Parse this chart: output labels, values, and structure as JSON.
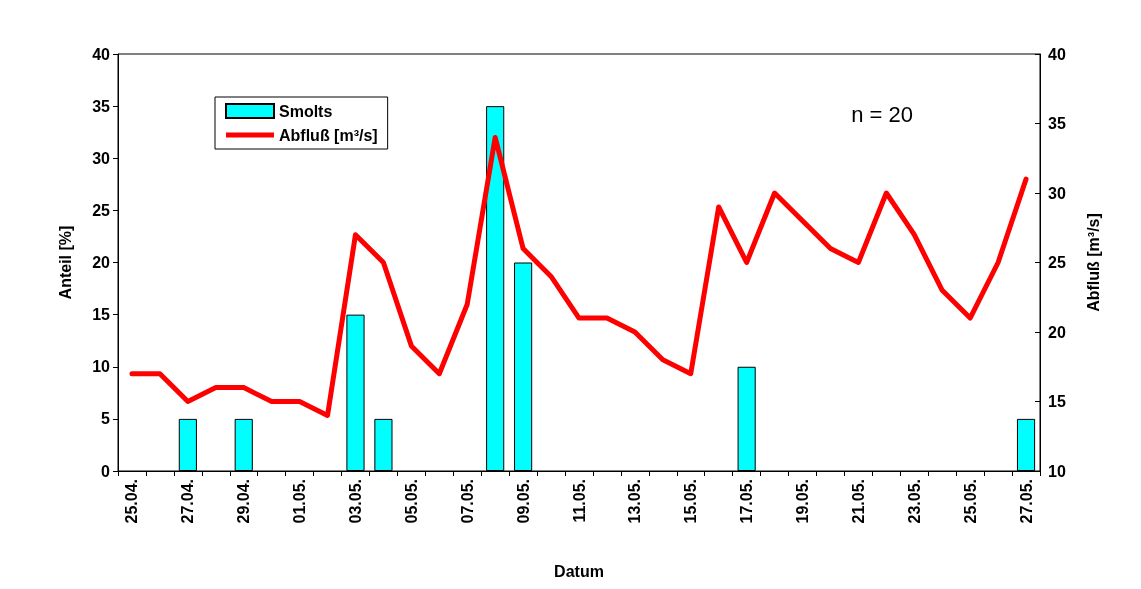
{
  "chart_data": {
    "type": "bar",
    "xlabel": "Datum",
    "ylabel": "Anteil [%]",
    "y2label": "Abfluß [m³/s]",
    "categories": [
      "25.04.",
      null,
      "27.04.",
      null,
      "29.04.",
      null,
      "01.05.",
      null,
      "03.05.",
      null,
      "05.05.",
      null,
      "07.05.",
      null,
      "09.05.",
      null,
      "11.05.",
      null,
      "13.05.",
      null,
      "15.05.",
      null,
      "17.05.",
      null,
      "19.05.",
      null,
      "21.05.",
      null,
      "23.05.",
      null,
      "25.05.",
      null,
      "27.05."
    ],
    "series": [
      {
        "name": "Smolts",
        "color": "#00ffff",
        "values": [
          0,
          0,
          5,
          0,
          5,
          0,
          0,
          0,
          15,
          5,
          0,
          0,
          0,
          35,
          20,
          0,
          0,
          0,
          0,
          0,
          0,
          0,
          10,
          0,
          0,
          0,
          0,
          0,
          0,
          0,
          0,
          0,
          5
        ]
      },
      {
        "name": "Abfluß [m³/s]",
        "type": "line",
        "axis": "y2",
        "color": "#ff0000",
        "values": [
          17,
          17,
          15,
          16,
          16,
          15,
          15,
          14,
          27,
          25,
          19,
          17,
          22,
          34,
          26,
          24,
          21,
          21,
          20,
          18,
          17,
          29,
          25,
          30,
          28,
          26,
          25,
          30,
          27,
          23,
          21,
          25,
          31
        ]
      }
    ],
    "ylim": [
      0,
      40
    ],
    "yticks": [
      0,
      5,
      10,
      15,
      20,
      25,
      30,
      35,
      40
    ],
    "y2lim": [
      10,
      40
    ],
    "y2ticks": [
      10,
      15,
      20,
      25,
      30,
      35,
      40
    ],
    "grid": false,
    "legend": "top left",
    "marker": "none",
    "line_style": "solid",
    "annotations": [
      "n = 20"
    ]
  }
}
